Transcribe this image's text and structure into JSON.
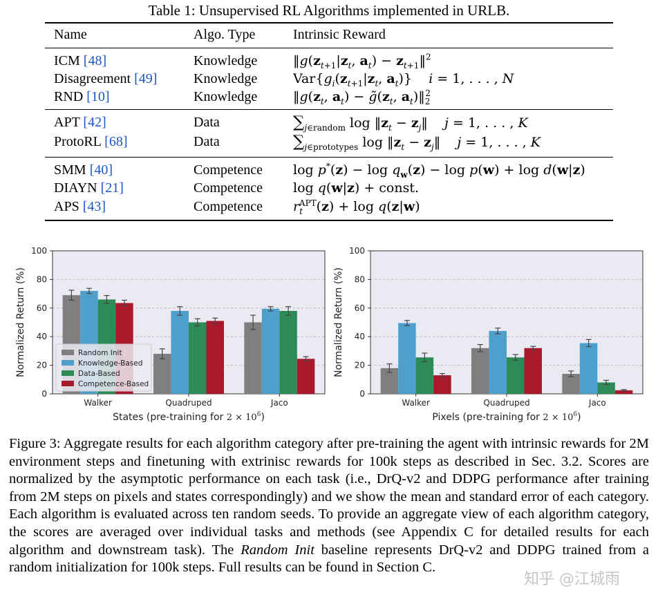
{
  "table": {
    "caption": "Table 1: Unsupervised RL Algorithms implemented in URLB.",
    "headers": [
      "Name",
      "Algo. Type",
      "Intrinsic Reward"
    ],
    "rows": [
      {
        "name": "ICM",
        "cite": "[48]",
        "type": "Knowledge"
      },
      {
        "name": "Disagreement",
        "cite": "[49]",
        "type": "Knowledge"
      },
      {
        "name": "RND",
        "cite": "[10]",
        "type": "Knowledge"
      },
      {
        "name": "APT",
        "cite": "[42]",
        "type": "Data"
      },
      {
        "name": "ProtoRL",
        "cite": "[68]",
        "type": "Data"
      },
      {
        "name": "SMM",
        "cite": "[40]",
        "type": "Competence"
      },
      {
        "name": "DIAYN",
        "cite": "[21]",
        "type": "Competence"
      },
      {
        "name": "APS",
        "cite": "[43]",
        "type": "Competence"
      }
    ],
    "formulas": {
      "icm": "ICM intrinsic reward: ||g(z_{t+1}|z_t, a_t) - z_{t+1}||^2",
      "disagreement": "Disagreement intrinsic reward: Var{g_i(z_{t+1}|z_t, a_t)}, i = 1, ..., N",
      "rnd": "RND intrinsic reward: ||g(z_t, a_t) - g~(z_t, a_t)||_2^2",
      "apt": "APT intrinsic reward: sum over j in random of log ||z_t - z_j||, j = 1, ..., K",
      "protorl": "ProtoRL intrinsic reward: sum over j in prototypes of log ||z_t - z_j||, j = 1, ..., K",
      "smm": "SMM intrinsic reward: log p*(z) - log q_w(z) - log p(w) + log d(w|z)",
      "diayn": "DIAYN intrinsic reward: log q(w|z) + const.",
      "aps": "APS intrinsic reward: r_t^APT(z) + log q(z|w)"
    }
  },
  "chart_data": [
    {
      "type": "bar",
      "title": "",
      "xlabel": "States (pre-training for 2 × 10^6)",
      "xlabel_prefix": "States (pre-training for ",
      "ylabel": "Normalized Return (%)",
      "ylim": [
        0,
        100
      ],
      "yticks": [
        "0",
        "20",
        "40",
        "60",
        "80",
        "100"
      ],
      "grid": "y-dashed",
      "legend_position": "lower-left",
      "categories": [
        "Walker",
        "Quadruped",
        "Jaco"
      ],
      "series": [
        {
          "name": "Random Init",
          "color": "#7f7f7f",
          "values": [
            69,
            28,
            50
          ],
          "errors": [
            3.5,
            3.5,
            5
          ]
        },
        {
          "name": "Knowledge-Based",
          "color": "#4f9fcd",
          "values": [
            72,
            58,
            59.5
          ],
          "errors": [
            1.8,
            3,
            1.5
          ]
        },
        {
          "name": "Data-Based",
          "color": "#2e8b57",
          "values": [
            66,
            50,
            58
          ],
          "errors": [
            2.8,
            2.5,
            3
          ]
        },
        {
          "name": "Competence-Based",
          "color": "#a8192c",
          "values": [
            63.5,
            51,
            24.5
          ],
          "errors": [
            2,
            2,
            1.5
          ]
        }
      ]
    },
    {
      "type": "bar",
      "title": "",
      "xlabel": "Pixels (pre-training for 2 × 10^6)",
      "xlabel_prefix": "Pixels (pre-training for ",
      "ylabel": "Normalized Return (%)",
      "ylim": [
        0,
        100
      ],
      "yticks": [
        "0",
        "20",
        "40",
        "60",
        "80",
        "100"
      ],
      "grid": "y-dashed",
      "categories": [
        "Walker",
        "Quadruped",
        "Jaco"
      ],
      "series": [
        {
          "name": "Random Init",
          "color": "#7f7f7f",
          "values": [
            18,
            32,
            14
          ],
          "errors": [
            3,
            2.5,
            2
          ]
        },
        {
          "name": "Knowledge-Based",
          "color": "#4f9fcd",
          "values": [
            49.5,
            44,
            35.5
          ],
          "errors": [
            1.8,
            2,
            2.5
          ]
        },
        {
          "name": "Data-Based",
          "color": "#2e8b57",
          "values": [
            25.5,
            25.5,
            8
          ],
          "errors": [
            3,
            2,
            1.5
          ]
        },
        {
          "name": "Competence-Based",
          "color": "#a8192c",
          "values": [
            13,
            32,
            2.5
          ],
          "errors": [
            1.2,
            1.2,
            0.5
          ]
        }
      ]
    }
  ],
  "figure": {
    "caption_label": "Figure 3:",
    "caption_part1": "Aggregate results for each algorithm category after pre-training the agent with intrinsic rewards for 2M environment steps and finetuning with extrinisc rewards for 100k steps as described in Sec. 3.2. Scores are normalized by the asymptotic performance on each task (i.e., DrQ-v2 and DDPG performance after training from 2M steps on pixels and states correspondingly) and we show the mean and standard error of each category. Each algorithm is evaluated across ten random seeds. To provide an aggregate view of each algorithm category, the scores are averaged over individual tasks and methods (see Appendix C for detailed results for each algorithm and downstream task). The",
    "caption_italic": "Random Init",
    "caption_part2": "baseline represents DrQ-v2 and DDPG trained from a random initialization for 100k steps. Full results can be found in Section C.",
    "watermark": "知乎 @江城雨"
  }
}
